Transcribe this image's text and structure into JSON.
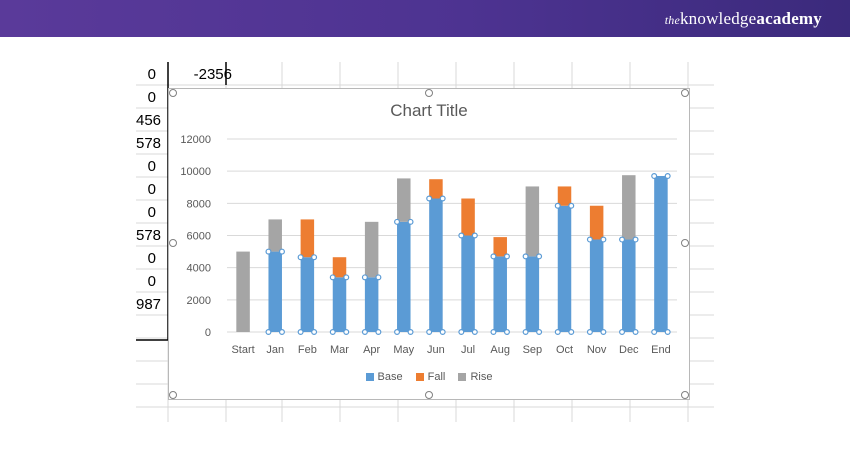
{
  "brand": {
    "prefix": "the",
    "name_regular": "knowledge",
    "name_bold": "academy"
  },
  "sheet": {
    "header_value": "-2356",
    "col_a_values": [
      "0",
      "0",
      "456",
      "578",
      "0",
      "0",
      "0",
      "578",
      "0",
      "0",
      "987"
    ]
  },
  "colors": {
    "base": "#5b9bd5",
    "fall": "#ed7d31",
    "rise": "#a5a5a5",
    "banner": "#4d3391"
  },
  "chart_data": {
    "type": "bar",
    "stacked": true,
    "title": "Chart Title",
    "categories": [
      "Start",
      "Jan",
      "Feb",
      "Mar",
      "Apr",
      "May",
      "Jun",
      "Jul",
      "Aug",
      "Sep",
      "Oct",
      "Nov",
      "Dec",
      "End"
    ],
    "series": [
      {
        "name": "Base",
        "values": [
          0,
          5000,
          4650,
          3400,
          3400,
          6850,
          8300,
          6000,
          4700,
          4700,
          7850,
          5750,
          5750,
          9700
        ]
      },
      {
        "name": "Fall",
        "values": [
          0,
          0,
          2350,
          1250,
          0,
          0,
          1200,
          2300,
          1200,
          0,
          1200,
          2100,
          0,
          0
        ]
      },
      {
        "name": "Rise",
        "values": [
          5000,
          2000,
          0,
          0,
          3450,
          2700,
          0,
          0,
          0,
          4350,
          0,
          0,
          4000,
          0
        ]
      }
    ],
    "ylim": [
      0,
      12000
    ],
    "yticks": [
      0,
      2000,
      4000,
      6000,
      8000,
      10000,
      12000
    ],
    "grid": true,
    "legend_position": "bottom",
    "legend": [
      "Base",
      "Fall",
      "Rise"
    ]
  }
}
